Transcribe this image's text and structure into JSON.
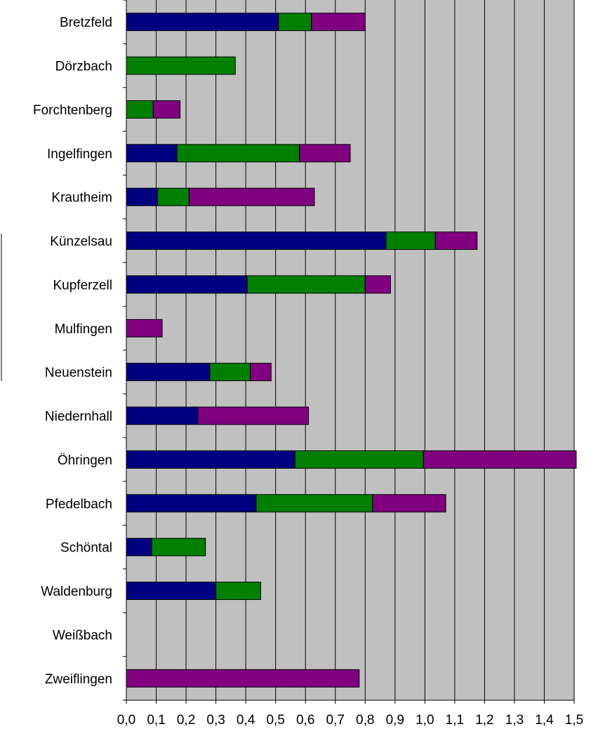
{
  "chart_data": {
    "type": "bar",
    "orientation": "horizontal",
    "stacked": true,
    "categories": [
      "Bretzfeld",
      "Dörzbach",
      "Forchtenberg",
      "Ingelfingen",
      "Krautheim",
      "Künzelsau",
      "Kupferzell",
      "Mulfingen",
      "Neuenstein",
      "Niedernhall",
      "Öhringen",
      "Pfedelbach",
      "Schöntal",
      "Waldenburg",
      "Weißbach",
      "Zweiflingen"
    ],
    "series": [
      {
        "color": "#000080",
        "values": [
          0.51,
          0,
          0,
          0.17,
          0.105,
          0.87,
          0.405,
          0,
          0.28,
          0.24,
          0.565,
          0.435,
          0.085,
          0.3,
          0,
          0
        ]
      },
      {
        "color": "#008000",
        "values": [
          0.11,
          0.365,
          0.09,
          0.41,
          0.105,
          0.165,
          0.395,
          0,
          0.135,
          0,
          0.43,
          0.39,
          0.18,
          0.15,
          0,
          0
        ]
      },
      {
        "color": "#800080",
        "values": [
          0.18,
          0,
          0.09,
          0.17,
          0.42,
          0.14,
          0.085,
          0.12,
          0.07,
          0.37,
          0.52,
          0.245,
          0,
          0,
          0,
          0.78
        ]
      }
    ],
    "xticks": [
      "0,0",
      "0,1",
      "0,2",
      "0,3",
      "0,4",
      "0,5",
      "0,6",
      "0,7",
      "0,8",
      "0,9",
      "1,0",
      "1,1",
      "1,2",
      "1,3",
      "1,4",
      "1,5"
    ],
    "xlim": [
      0,
      1.5
    ],
    "grid": true,
    "plot_background": "#c0c0c0",
    "title": "",
    "xlabel": "",
    "ylabel": ""
  }
}
